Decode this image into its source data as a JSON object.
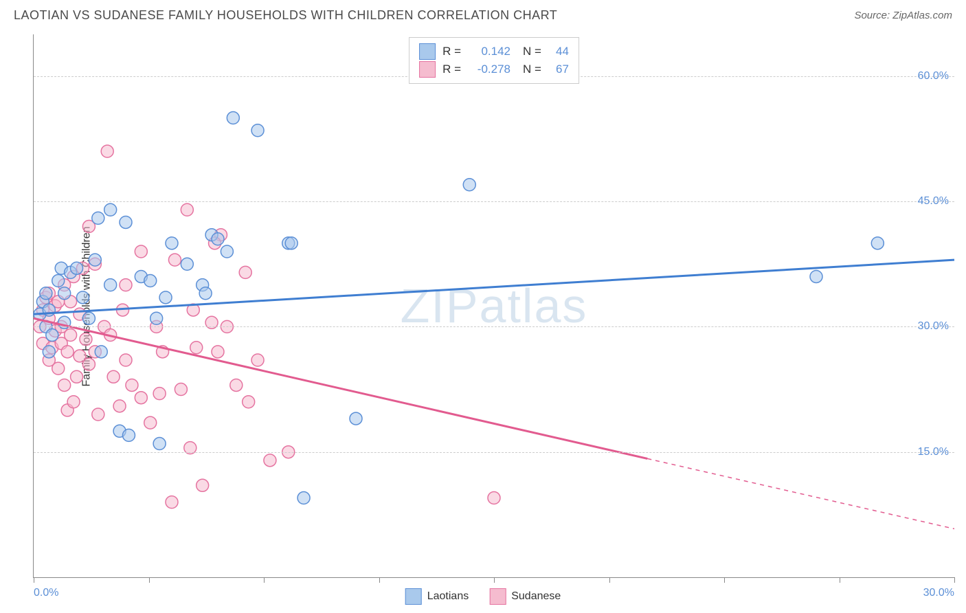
{
  "header": {
    "title": "LAOTIAN VS SUDANESE FAMILY HOUSEHOLDS WITH CHILDREN CORRELATION CHART",
    "source": "Source: ZipAtlas.com"
  },
  "watermark": "ZIPatlas",
  "ylabel": "Family Households with Children",
  "chart": {
    "type": "scatter",
    "xlim": [
      0,
      30
    ],
    "ylim": [
      0,
      65
    ],
    "xtick_positions": [
      0,
      3.75,
      7.5,
      11.25,
      15,
      18.75,
      22.5,
      26.25,
      30
    ],
    "xaxis_labels": [
      {
        "value": "0.0%",
        "x": 0
      },
      {
        "value": "30.0%",
        "x": 30
      }
    ],
    "ytick_labels": [
      {
        "value": "15.0%",
        "y": 15
      },
      {
        "value": "30.0%",
        "y": 30
      },
      {
        "value": "45.0%",
        "y": 45
      },
      {
        "value": "60.0%",
        "y": 60
      }
    ],
    "grid_color": "#cccccc",
    "background_color": "#ffffff",
    "marker_radius": 9,
    "marker_opacity": 0.55,
    "series": {
      "laotians": {
        "label": "Laotians",
        "color_fill": "#a9c9ec",
        "color_stroke": "#5b8fd6",
        "R": "0.142",
        "N": "44",
        "trendline": {
          "x1": 0,
          "y1": 31.5,
          "x2": 30,
          "y2": 38.0,
          "solid_extent_x": 30,
          "color": "#3f7ed1",
          "width": 3
        },
        "points": [
          [
            0.2,
            31.5
          ],
          [
            0.3,
            33
          ],
          [
            0.4,
            30
          ],
          [
            0.4,
            34
          ],
          [
            0.5,
            27
          ],
          [
            0.5,
            32
          ],
          [
            0.6,
            29
          ],
          [
            0.8,
            35.5
          ],
          [
            0.9,
            37
          ],
          [
            1.0,
            34
          ],
          [
            1.0,
            30.5
          ],
          [
            1.2,
            36.5
          ],
          [
            1.4,
            37
          ],
          [
            1.6,
            33.5
          ],
          [
            1.8,
            31
          ],
          [
            2.0,
            38
          ],
          [
            2.1,
            43
          ],
          [
            2.2,
            27
          ],
          [
            2.5,
            44
          ],
          [
            2.5,
            35
          ],
          [
            2.8,
            17.5
          ],
          [
            3.0,
            42.5
          ],
          [
            3.1,
            17
          ],
          [
            3.5,
            36
          ],
          [
            3.8,
            35.5
          ],
          [
            4.0,
            31
          ],
          [
            4.1,
            16
          ],
          [
            4.3,
            33.5
          ],
          [
            4.5,
            40
          ],
          [
            5.0,
            37.5
          ],
          [
            5.5,
            35
          ],
          [
            5.6,
            34
          ],
          [
            5.8,
            41
          ],
          [
            6.0,
            40.5
          ],
          [
            6.3,
            39
          ],
          [
            6.5,
            55
          ],
          [
            7.3,
            53.5
          ],
          [
            8.3,
            40
          ],
          [
            8.4,
            40
          ],
          [
            8.8,
            9.5
          ],
          [
            10.5,
            19
          ],
          [
            14.2,
            47
          ],
          [
            25.5,
            36
          ],
          [
            27.5,
            40
          ]
        ]
      },
      "sudanese": {
        "label": "Sudanese",
        "color_fill": "#f5bccf",
        "color_stroke": "#e573a0",
        "R": "-0.278",
        "N": "67",
        "trendline": {
          "x1": 0,
          "y1": 31.0,
          "x2": 30,
          "y2": 5.8,
          "solid_extent_x": 20,
          "color": "#e25b8f",
          "width": 3
        },
        "points": [
          [
            0.2,
            30
          ],
          [
            0.3,
            32
          ],
          [
            0.3,
            28
          ],
          [
            0.4,
            33.5
          ],
          [
            0.5,
            26
          ],
          [
            0.5,
            31
          ],
          [
            0.5,
            34
          ],
          [
            0.6,
            27.5
          ],
          [
            0.7,
            29.5
          ],
          [
            0.7,
            32.5
          ],
          [
            0.8,
            25
          ],
          [
            0.8,
            33
          ],
          [
            0.9,
            28
          ],
          [
            0.9,
            30
          ],
          [
            1.0,
            23
          ],
          [
            1.0,
            35
          ],
          [
            1.1,
            20
          ],
          [
            1.1,
            27
          ],
          [
            1.2,
            29
          ],
          [
            1.2,
            33
          ],
          [
            1.3,
            21
          ],
          [
            1.3,
            36
          ],
          [
            1.4,
            24
          ],
          [
            1.5,
            26.5
          ],
          [
            1.5,
            31.5
          ],
          [
            1.6,
            37
          ],
          [
            1.7,
            28.5
          ],
          [
            1.8,
            42
          ],
          [
            1.8,
            25.5
          ],
          [
            2.0,
            37.5
          ],
          [
            2.0,
            27
          ],
          [
            2.1,
            19.5
          ],
          [
            2.3,
            30
          ],
          [
            2.4,
            51
          ],
          [
            2.5,
            29
          ],
          [
            2.6,
            24
          ],
          [
            2.8,
            20.5
          ],
          [
            3.0,
            35
          ],
          [
            3.0,
            26
          ],
          [
            3.2,
            23
          ],
          [
            3.5,
            21.5
          ],
          [
            3.5,
            39
          ],
          [
            3.8,
            18.5
          ],
          [
            4.0,
            30
          ],
          [
            4.1,
            22
          ],
          [
            4.2,
            27
          ],
          [
            4.5,
            9
          ],
          [
            4.6,
            38
          ],
          [
            4.8,
            22.5
          ],
          [
            5.0,
            44
          ],
          [
            5.1,
            15.5
          ],
          [
            5.2,
            32
          ],
          [
            5.3,
            27.5
          ],
          [
            5.5,
            11
          ],
          [
            5.8,
            30.5
          ],
          [
            6.1,
            41
          ],
          [
            6.3,
            30
          ],
          [
            6.6,
            23
          ],
          [
            6.9,
            36.5
          ],
          [
            7.0,
            21
          ],
          [
            7.3,
            26
          ],
          [
            7.7,
            14
          ],
          [
            8.3,
            15
          ],
          [
            5.9,
            40
          ],
          [
            6.0,
            27
          ],
          [
            15.0,
            9.5
          ],
          [
            2.9,
            32
          ]
        ]
      }
    }
  },
  "legend_top": {
    "rows": [
      {
        "swatch_fill": "#a9c9ec",
        "swatch_stroke": "#5b8fd6",
        "r_label": "R =",
        "r_value": "0.142",
        "n_label": "N =",
        "n_value": "44"
      },
      {
        "swatch_fill": "#f5bccf",
        "swatch_stroke": "#e573a0",
        "r_label": "R =",
        "r_value": "-0.278",
        "n_label": "N =",
        "n_value": "67"
      }
    ]
  },
  "legend_bottom": {
    "items": [
      {
        "swatch_fill": "#a9c9ec",
        "swatch_stroke": "#5b8fd6",
        "label": "Laotians"
      },
      {
        "swatch_fill": "#f5bccf",
        "swatch_stroke": "#e573a0",
        "label": "Sudanese"
      }
    ]
  }
}
